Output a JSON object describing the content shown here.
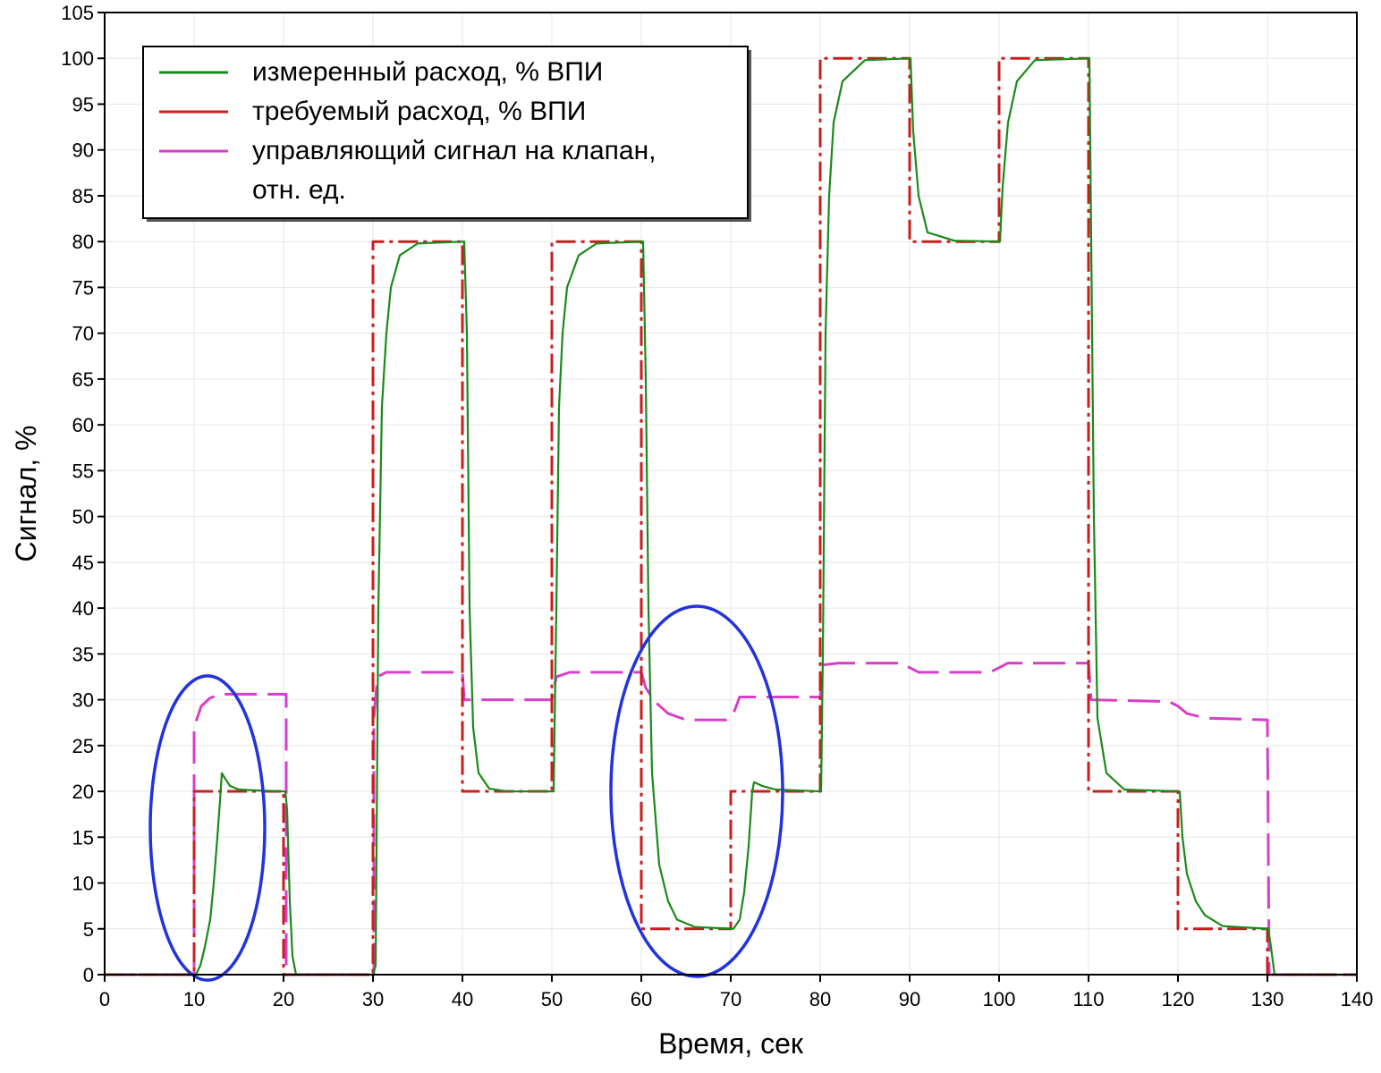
{
  "chart_data": {
    "type": "line",
    "xlabel": "Время, сек",
    "ylabel": "Сигнал, %",
    "xlim": [
      0,
      140
    ],
    "ylim": [
      0,
      105
    ],
    "x_ticks": [
      "0",
      "10",
      "20",
      "30",
      "40",
      "50",
      "60",
      "70",
      "80",
      "90",
      "100",
      "110",
      "120",
      "130",
      "140"
    ],
    "y_ticks": [
      "0",
      "5",
      "10",
      "15",
      "20",
      "25",
      "30",
      "35",
      "40",
      "45",
      "50",
      "55",
      "60",
      "65",
      "70",
      "75",
      "80",
      "85",
      "90",
      "95",
      "100",
      "105"
    ],
    "grid": true,
    "legend_position": "top-left",
    "legend": [
      {
        "series": 0,
        "lines": [
          "измеренный расход, % ВПИ"
        ]
      },
      {
        "series": 1,
        "lines": [
          "требуемый расход, % ВПИ"
        ]
      },
      {
        "series": 2,
        "lines": [
          "управляющий сигнал на клапан,",
          "отн. ед."
        ]
      }
    ],
    "series": [
      {
        "name": "измеренный расход, % ВПИ",
        "color": "#1a8a1a",
        "style": "solid",
        "points": [
          [
            0,
            0
          ],
          [
            10.2,
            0
          ],
          [
            10.7,
            1
          ],
          [
            11.2,
            3
          ],
          [
            11.8,
            6
          ],
          [
            12.2,
            10
          ],
          [
            12.6,
            15
          ],
          [
            12.9,
            19
          ],
          [
            13.1,
            22
          ],
          [
            13.4,
            21.5
          ],
          [
            14,
            20.6
          ],
          [
            15,
            20.2
          ],
          [
            17,
            20.1
          ],
          [
            20.2,
            20
          ],
          [
            20.4,
            18
          ],
          [
            20.7,
            8
          ],
          [
            21,
            2
          ],
          [
            21.4,
            0
          ],
          [
            30,
            0
          ],
          [
            30.3,
            1
          ],
          [
            30.6,
            40
          ],
          [
            31,
            62
          ],
          [
            31.5,
            70
          ],
          [
            32,
            75
          ],
          [
            33,
            78.5
          ],
          [
            35,
            79.8
          ],
          [
            40.2,
            80
          ],
          [
            40.5,
            70
          ],
          [
            40.8,
            40
          ],
          [
            41.2,
            27
          ],
          [
            41.8,
            22
          ],
          [
            43,
            20.3
          ],
          [
            45,
            20
          ],
          [
            50.2,
            20
          ],
          [
            50.5,
            40
          ],
          [
            50.8,
            62
          ],
          [
            51.2,
            70
          ],
          [
            51.7,
            75
          ],
          [
            53,
            78.5
          ],
          [
            55,
            79.8
          ],
          [
            60.2,
            80
          ],
          [
            60.5,
            65
          ],
          [
            60.8,
            40
          ],
          [
            61.2,
            22
          ],
          [
            62,
            12
          ],
          [
            63,
            8
          ],
          [
            64,
            6
          ],
          [
            66,
            5.2
          ],
          [
            70.3,
            5
          ],
          [
            71,
            6
          ],
          [
            71.5,
            9
          ],
          [
            72,
            14
          ],
          [
            72.4,
            20
          ],
          [
            72.6,
            21
          ],
          [
            73.5,
            20.6
          ],
          [
            75,
            20.2
          ],
          [
            80.1,
            20
          ],
          [
            80.3,
            35
          ],
          [
            80.6,
            70
          ],
          [
            81,
            85
          ],
          [
            81.5,
            93
          ],
          [
            82.5,
            97.5
          ],
          [
            85,
            99.8
          ],
          [
            90.1,
            100
          ],
          [
            90.4,
            92
          ],
          [
            91,
            85
          ],
          [
            92,
            81
          ],
          [
            95,
            80.1
          ],
          [
            100.1,
            80
          ],
          [
            100.4,
            86
          ],
          [
            101,
            93
          ],
          [
            102,
            97.5
          ],
          [
            104,
            99.8
          ],
          [
            110.1,
            100
          ],
          [
            110.3,
            80
          ],
          [
            110.6,
            50
          ],
          [
            111,
            28
          ],
          [
            112,
            22
          ],
          [
            114,
            20.2
          ],
          [
            120.2,
            20
          ],
          [
            120.5,
            15
          ],
          [
            121,
            11
          ],
          [
            122,
            8
          ],
          [
            123,
            6.5
          ],
          [
            125,
            5.3
          ],
          [
            130.1,
            5
          ],
          [
            130.4,
            3
          ],
          [
            130.8,
            0
          ],
          [
            140,
            0
          ]
        ]
      },
      {
        "name": "требуемый расход, % ВПИ",
        "color": "#c81e1e",
        "style": "dashdot",
        "points": [
          [
            0,
            0
          ],
          [
            10,
            0
          ],
          [
            10,
            20
          ],
          [
            20,
            20
          ],
          [
            20,
            0
          ],
          [
            30,
            0
          ],
          [
            30,
            80
          ],
          [
            40,
            80
          ],
          [
            40,
            20
          ],
          [
            50,
            20
          ],
          [
            50,
            80
          ],
          [
            60,
            80
          ],
          [
            60,
            5
          ],
          [
            70,
            5
          ],
          [
            70,
            20
          ],
          [
            80,
            20
          ],
          [
            80,
            100
          ],
          [
            90,
            100
          ],
          [
            90,
            80
          ],
          [
            100,
            80
          ],
          [
            100,
            100
          ],
          [
            110,
            100
          ],
          [
            110,
            20
          ],
          [
            120,
            20
          ],
          [
            120,
            5
          ],
          [
            130,
            5
          ],
          [
            130,
            0
          ],
          [
            140,
            0
          ]
        ]
      },
      {
        "name": "управляющий сигнал на клапан, отн. ед.",
        "color": "#d63fc8",
        "style": "dash",
        "points": [
          [
            0,
            0
          ],
          [
            10,
            0
          ],
          [
            10,
            27
          ],
          [
            10.8,
            29.3
          ],
          [
            11.8,
            30.2
          ],
          [
            13,
            30.6
          ],
          [
            20.3,
            30.6
          ],
          [
            20.3,
            0
          ],
          [
            30.1,
            0
          ],
          [
            30.1,
            28
          ],
          [
            30.5,
            32.5
          ],
          [
            31.5,
            33
          ],
          [
            40,
            33
          ],
          [
            40.2,
            30
          ],
          [
            50,
            30
          ],
          [
            50.5,
            32.5
          ],
          [
            52,
            33
          ],
          [
            60,
            33
          ],
          [
            60.5,
            31.3
          ],
          [
            61.5,
            29.8
          ],
          [
            63,
            28.5
          ],
          [
            65,
            27.8
          ],
          [
            69.5,
            27.8
          ],
          [
            70.3,
            28.5
          ],
          [
            71,
            30.3
          ],
          [
            80,
            30.3
          ],
          [
            80.3,
            33.8
          ],
          [
            82,
            34
          ],
          [
            89,
            34
          ],
          [
            91,
            33
          ],
          [
            99,
            33
          ],
          [
            101,
            34
          ],
          [
            110,
            34
          ],
          [
            110.3,
            30
          ],
          [
            119,
            29.8
          ],
          [
            120,
            29.3
          ],
          [
            121,
            28.5
          ],
          [
            123,
            28
          ],
          [
            130,
            27.8
          ],
          [
            130.2,
            0
          ],
          [
            140,
            0
          ]
        ]
      }
    ],
    "annotations": [
      {
        "shape": "ellipse",
        "color": "#2233dd",
        "cx": 11.5,
        "cy": 16,
        "rx": 6.4,
        "ry": 16.6
      },
      {
        "shape": "ellipse",
        "color": "#2233dd",
        "cx": 66.2,
        "cy": 20,
        "rx": 9.6,
        "ry": 20.2
      }
    ]
  }
}
